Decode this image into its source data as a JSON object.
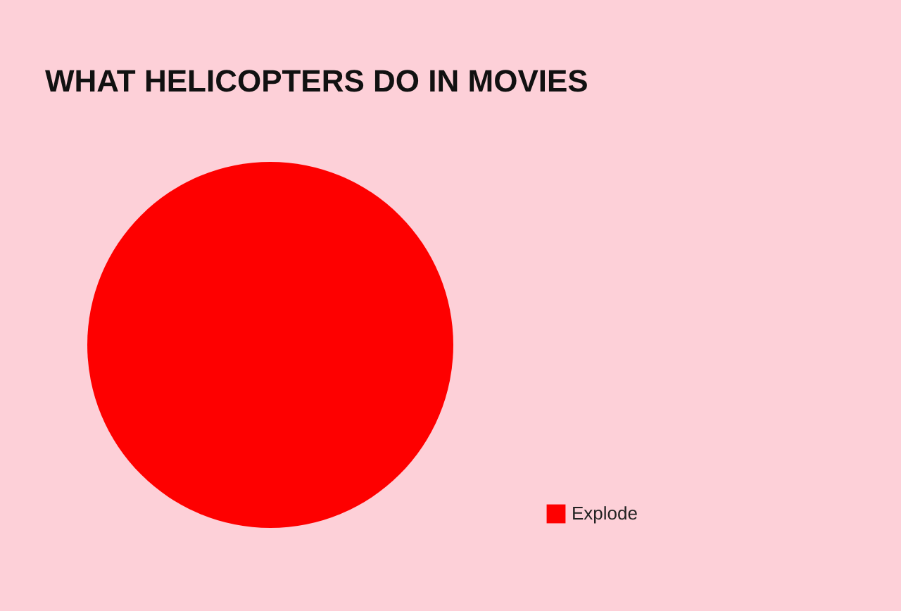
{
  "chart_data": {
    "type": "pie",
    "title": "WHAT HELICOPTERS DO IN MOVIES",
    "categories": [
      "Explode"
    ],
    "values": [
      100
    ],
    "colors": [
      "#fe0000"
    ],
    "legend": "bottom right"
  }
}
